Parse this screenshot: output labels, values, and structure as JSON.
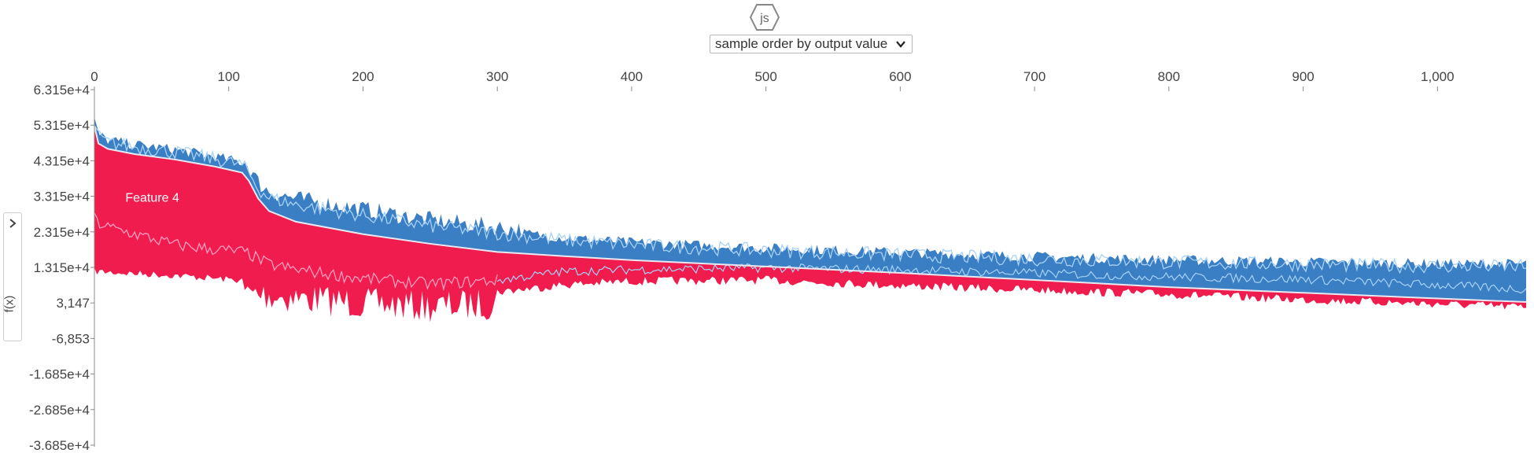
{
  "header": {
    "logo_text": "js",
    "order_select": {
      "selected": "sample order by output value"
    }
  },
  "sidebar": {
    "ylabel": "f(x)"
  },
  "colors": {
    "positive": "#ff0d57",
    "negative": "#1e88e5",
    "positive_mark": "#f01c4e",
    "negative_mark": "#3a7ec4",
    "light_pos_line": "#ff9ec0",
    "light_neg_line": "#a7d2f7",
    "axis": "#888888"
  },
  "chart_data": {
    "type": "area",
    "title": "",
    "xlabel": "",
    "ylabel": "f(x)",
    "grid": false,
    "xlim": [
      0,
      1066
    ],
    "ylim": [
      -36853,
      63147
    ],
    "x_ticks": [
      0,
      100,
      200,
      300,
      400,
      500,
      600,
      700,
      800,
      900,
      1000
    ],
    "x_tick_labels": [
      "0",
      "100",
      "200",
      "300",
      "400",
      "500",
      "600",
      "700",
      "800",
      "900",
      "1,000"
    ],
    "y_ticks": [
      63150,
      53150,
      43150,
      33150,
      23150,
      13150,
      3147,
      -6853,
      -16850,
      -26850,
      -36850
    ],
    "y_tick_labels": [
      "6.315e+4",
      "5.315e+4",
      "4.315e+4",
      "3.315e+4",
      "2.315e+4",
      "1.315e+4",
      "3,147",
      "-6,853",
      "-1.685e+4",
      "-2.685e+4",
      "-3.685e+4"
    ],
    "annotations": [
      {
        "text": "Feature 4",
        "x": 50,
        "y": 33000
      }
    ],
    "x": [
      0,
      3,
      10,
      30,
      60,
      90,
      110,
      115,
      122,
      130,
      150,
      200,
      250,
      300,
      350,
      400,
      500,
      600,
      700,
      800,
      900,
      1000,
      1066
    ],
    "output_value": [
      53000,
      48000,
      46500,
      45000,
      43500,
      41500,
      39800,
      37500,
      32500,
      29000,
      26000,
      22500,
      19800,
      17500,
      16300,
      15200,
      13400,
      11600,
      9600,
      7600,
      6000,
      4400,
      3400
    ],
    "positive_lower": [
      13000,
      13000,
      12800,
      12400,
      11900,
      11000,
      10500,
      10300,
      10000,
      9700,
      9000,
      7500,
      6500,
      7500,
      9500,
      10500,
      10800,
      9300,
      8000,
      6800,
      5300,
      4100,
      3200
    ],
    "negative_upper": [
      53000,
      49000,
      47500,
      46200,
      44800,
      42800,
      41200,
      39000,
      34500,
      32000,
      30000,
      27000,
      24000,
      22000,
      20000,
      18700,
      17100,
      15900,
      14700,
      13800,
      13200,
      12700,
      12600
    ],
    "feature_line": [
      27000,
      25500,
      24500,
      22500,
      19500,
      18200,
      17500,
      17000,
      15500,
      14000,
      12500,
      10000,
      8500,
      9500,
      12000,
      12500,
      13000,
      12500,
      11500,
      10500,
      9800,
      8200,
      7000
    ]
  }
}
